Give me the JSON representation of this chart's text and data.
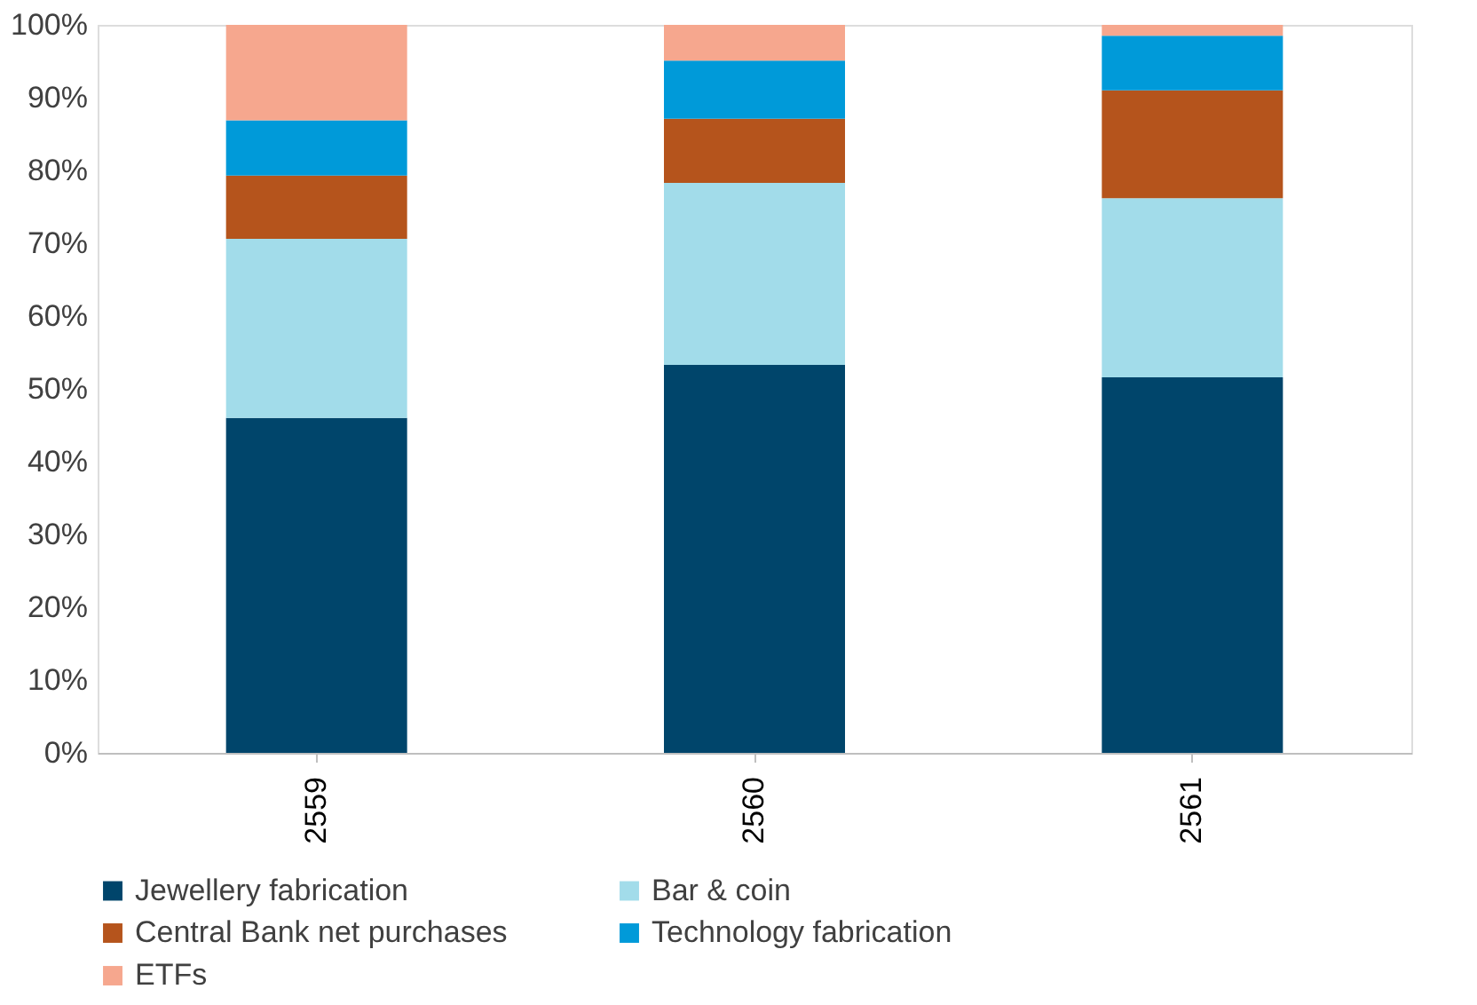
{
  "chart_data": {
    "type": "bar",
    "stacked": true,
    "categories": [
      "2559",
      "2560",
      "2561"
    ],
    "series": [
      {
        "name": "Jewellery fabrication",
        "color": "#00456b",
        "values": [
          46.0,
          53.3,
          51.6
        ]
      },
      {
        "name": "Bar & coin",
        "color": "#a2dcea",
        "values": [
          24.6,
          25.0,
          24.6
        ]
      },
      {
        "name": "Central Bank net purchases",
        "color": "#b5541c",
        "values": [
          8.7,
          8.8,
          14.8
        ]
      },
      {
        "name": "Technology fabrication",
        "color": "#009ad9",
        "values": [
          7.6,
          8.0,
          7.5
        ]
      },
      {
        "name": "ETFs",
        "color": "#f6a78e",
        "values": [
          13.1,
          4.9,
          1.5
        ]
      }
    ],
    "ylim": [
      0,
      100
    ],
    "yticks": [
      {
        "value": 0,
        "label": "0%"
      },
      {
        "value": 10,
        "label": "10%"
      },
      {
        "value": 20,
        "label": "20%"
      },
      {
        "value": 30,
        "label": "30%"
      },
      {
        "value": 40,
        "label": "40%"
      },
      {
        "value": 50,
        "label": "50%"
      },
      {
        "value": 60,
        "label": "60%"
      },
      {
        "value": 70,
        "label": "70%"
      },
      {
        "value": 80,
        "label": "80%"
      },
      {
        "value": 90,
        "label": "90%"
      },
      {
        "value": 100,
        "label": "100%"
      }
    ],
    "grid": false,
    "legend": "bottom"
  }
}
